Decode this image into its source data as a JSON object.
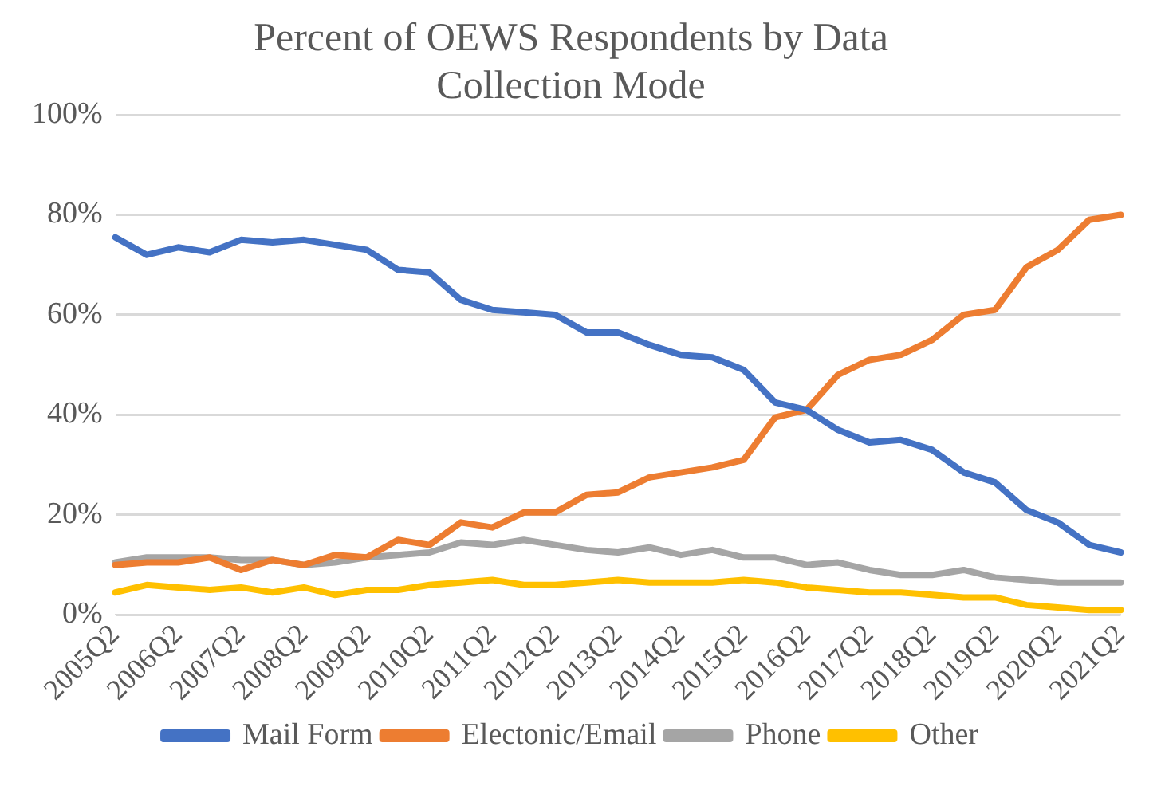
{
  "chart_data": {
    "type": "line",
    "title": "Percent of OEWS Respondents by Data Collection Mode",
    "categories": [
      "2005Q2",
      null,
      "2006Q2",
      null,
      "2007Q2",
      null,
      "2008Q2",
      null,
      "2009Q2",
      null,
      "2010Q2",
      null,
      "2011Q2",
      null,
      "2012Q2",
      null,
      "2013Q2",
      null,
      "2014Q2",
      null,
      "2015Q2",
      null,
      "2016Q2",
      null,
      "2017Q2",
      null,
      "2018Q2",
      null,
      "2019Q2",
      null,
      "2020Q2",
      null,
      "2021Q2"
    ],
    "series": [
      {
        "name": "Mail Form",
        "color": "#4472c4",
        "values": [
          75.5,
          72,
          73.5,
          72.5,
          75,
          74.5,
          75,
          74,
          73,
          69,
          68.5,
          63,
          61,
          60.5,
          60,
          56.5,
          56.5,
          54,
          52,
          51.5,
          49,
          42.5,
          41,
          37,
          34.5,
          35,
          33,
          28.5,
          26.5,
          21,
          18.5,
          14,
          12.5
        ]
      },
      {
        "name": "Electonic/Email",
        "color": "#ed7d31",
        "values": [
          10,
          10.5,
          10.5,
          11.5,
          9,
          11,
          10,
          12,
          11.5,
          15,
          14,
          18.5,
          17.5,
          20.5,
          20.5,
          24,
          24.5,
          27.5,
          28.5,
          29.5,
          31,
          39.5,
          41,
          48,
          51,
          52,
          55,
          60,
          61,
          69.5,
          73,
          79,
          80
        ]
      },
      {
        "name": "Phone",
        "color": "#a5a5a5",
        "values": [
          10.5,
          11.5,
          11.5,
          11.5,
          11,
          11,
          10,
          10.5,
          11.5,
          12,
          12.5,
          14.5,
          14,
          15,
          14,
          13,
          12.5,
          13.5,
          12,
          13,
          11.5,
          11.5,
          10,
          10.5,
          9,
          8,
          8,
          9,
          7.5,
          7,
          6.5,
          6.5,
          6.5
        ]
      },
      {
        "name": "Other",
        "color": "#ffc000",
        "values": [
          4.5,
          6,
          5.5,
          5,
          5.5,
          4.5,
          5.5,
          4,
          5,
          5,
          6,
          6.5,
          7,
          6,
          6,
          6.5,
          7,
          6.5,
          6.5,
          6.5,
          7,
          6.5,
          5.5,
          5,
          4.5,
          4.5,
          4,
          3.5,
          3.5,
          2,
          1.5,
          1,
          1
        ]
      }
    ],
    "ylim": [
      0,
      100
    ],
    "yticks": [
      {
        "value": 0,
        "label": "0%"
      },
      {
        "value": 20,
        "label": "20%"
      },
      {
        "value": 40,
        "label": "40%"
      },
      {
        "value": 60,
        "label": "60%"
      },
      {
        "value": 80,
        "label": "80%"
      },
      {
        "value": 100,
        "label": "100%"
      }
    ],
    "grid": "y",
    "legend": "bottom",
    "marker": "none",
    "line_style": "solid"
  }
}
